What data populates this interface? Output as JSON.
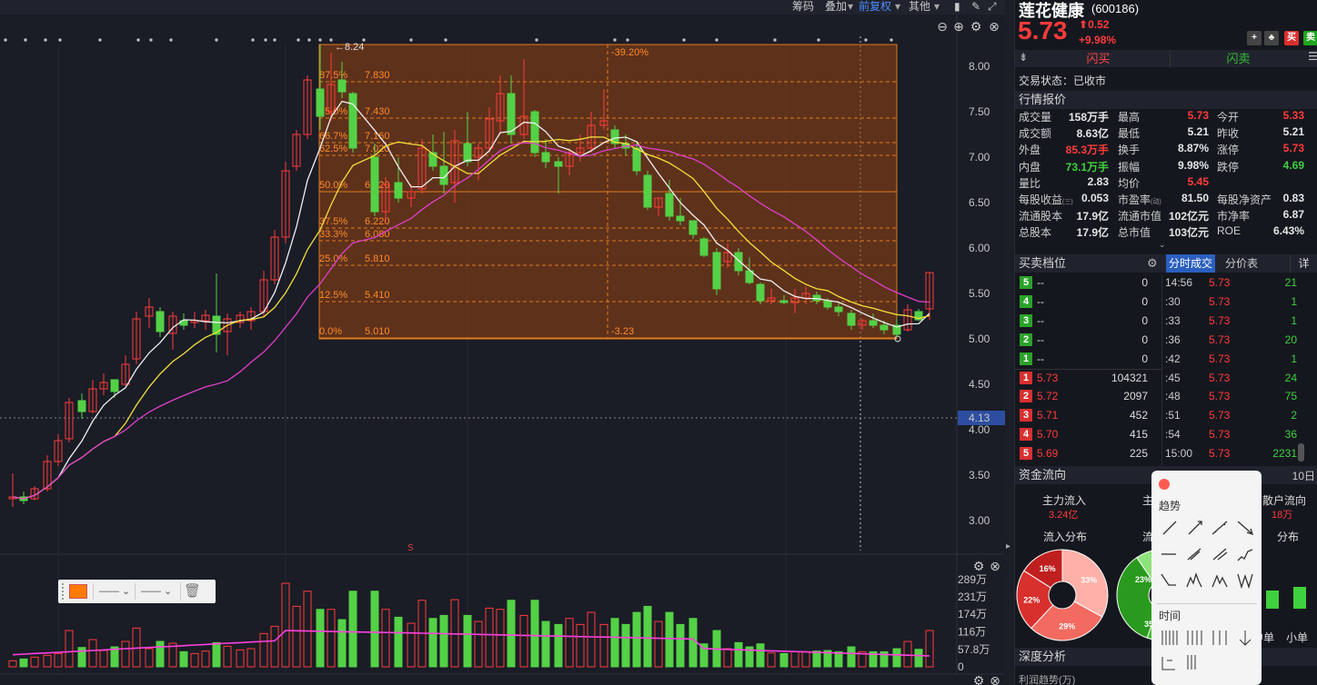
{
  "toolbar": {
    "chips": "筹码",
    "overlay": "叠加",
    "adjust": "前复权",
    "other": "其他"
  },
  "price_axis": [
    "8.00",
    "7.50",
    "7.00",
    "6.50",
    "6.00",
    "5.50",
    "5.00",
    "4.50",
    "4.00",
    "3.50",
    "3.00"
  ],
  "crosshair_price": "4.13",
  "fib": {
    "levels": [
      {
        "pct": "87.5%",
        "price": "7.830"
      },
      {
        "pct": "75.0%",
        "price": "7.430"
      },
      {
        "pct": "66.7%",
        "price": "7.160"
      },
      {
        "pct": "62.5%",
        "price": "7.020"
      },
      {
        "pct": "50.0%",
        "price": "6.620"
      },
      {
        "pct": "37.5%",
        "price": "6.220"
      },
      {
        "pct": "33.3%",
        "price": "6.080"
      },
      {
        "pct": "25.0%",
        "price": "5.810"
      },
      {
        "pct": "12.5%",
        "price": "5.410"
      },
      {
        "pct": "0.0%",
        "price": "5.010"
      }
    ],
    "high_label": "8.24",
    "change_label": "-39.20%",
    "diff_label": "-3.23"
  },
  "signal_mark": "S",
  "volume_axis": [
    "289万",
    "231万",
    "174万",
    "116万",
    "57.8万",
    "0"
  ],
  "stock": {
    "name": "莲花健康",
    "code": "(600186)",
    "price": "5.73",
    "change": "0.52",
    "change_pct": "+9.98%"
  },
  "trade_buttons": {
    "buy": "闪买",
    "sell": "闪卖",
    "buy_small": "买",
    "sell_small": "卖"
  },
  "trade_status": "交易状态：已收市",
  "quote_title": "行情报价",
  "quote": [
    [
      {
        "k": "成交量",
        "v": "158万手"
      },
      {
        "k": "最高",
        "v": "5.73",
        "c": "red"
      },
      {
        "k": "今开",
        "v": "5.33",
        "c": "red"
      }
    ],
    [
      {
        "k": "成交额",
        "v": "8.63亿"
      },
      {
        "k": "最低",
        "v": "5.21"
      },
      {
        "k": "昨收",
        "v": "5.21"
      }
    ],
    [
      {
        "k": "外盘",
        "v": "85.3万手",
        "c": "red"
      },
      {
        "k": "换手",
        "v": "8.87%"
      },
      {
        "k": "涨停",
        "v": "5.73",
        "c": "red"
      }
    ],
    [
      {
        "k": "内盘",
        "v": "73.1万手",
        "c": "green"
      },
      {
        "k": "振幅",
        "v": "9.98%"
      },
      {
        "k": "跌停",
        "v": "4.69",
        "c": "green"
      }
    ],
    [
      {
        "k": "量比",
        "v": "2.83"
      },
      {
        "k": "均价",
        "v": "5.45",
        "c": "red"
      },
      {
        "k": "",
        "v": ""
      }
    ],
    [
      {
        "k": "每股收益",
        "v": "0.053",
        "sup": "(三)"
      },
      {
        "k": "市盈率",
        "v": "81.50",
        "sup": "(动)"
      },
      {
        "k": "每股净资产",
        "v": "0.83"
      }
    ],
    [
      {
        "k": "流通股本",
        "v": "17.9亿"
      },
      {
        "k": "流通市值",
        "v": "102亿元"
      },
      {
        "k": "市净率",
        "v": "6.87"
      }
    ],
    [
      {
        "k": "总股本",
        "v": "17.9亿"
      },
      {
        "k": "总市值",
        "v": "103亿元"
      },
      {
        "k": "ROE",
        "v": "6.43%"
      }
    ]
  ],
  "orderbook_title": "买卖档位",
  "asks": [
    {
      "n": "5",
      "p": "--",
      "v": "0"
    },
    {
      "n": "4",
      "p": "--",
      "v": "0"
    },
    {
      "n": "3",
      "p": "--",
      "v": "0"
    },
    {
      "n": "2",
      "p": "--",
      "v": "0"
    },
    {
      "n": "1",
      "p": "--",
      "v": "0"
    }
  ],
  "bids": [
    {
      "n": "1",
      "p": "5.73",
      "v": "104321"
    },
    {
      "n": "2",
      "p": "5.72",
      "v": "2097"
    },
    {
      "n": "3",
      "p": "5.71",
      "v": "452"
    },
    {
      "n": "4",
      "p": "5.70",
      "v": "415"
    },
    {
      "n": "5",
      "p": "5.69",
      "v": "225"
    }
  ],
  "ticks_tabs": {
    "t1": "分时成交",
    "t2": "分价表",
    "detail": "详"
  },
  "ticks": [
    {
      "t": "14:56",
      "p": "5.73",
      "v": "21"
    },
    {
      "t": ":30",
      "p": "5.73",
      "v": "1"
    },
    {
      "t": ":33",
      "p": "5.73",
      "v": "1"
    },
    {
      "t": ":36",
      "p": "5.73",
      "v": "20"
    },
    {
      "t": ":42",
      "p": "5.73",
      "v": "1"
    },
    {
      "t": ":45",
      "p": "5.73",
      "v": "24"
    },
    {
      "t": ":48",
      "p": "5.73",
      "v": "75"
    },
    {
      "t": ":51",
      "p": "5.73",
      "v": "2"
    },
    {
      "t": ":54",
      "p": "5.73",
      "v": "36"
    },
    {
      "t": "15:00",
      "p": "5.73",
      "v": "2231"
    }
  ],
  "flow": {
    "title": "资金流向",
    "tab_10": "10日",
    "main_in": "主力流入",
    "main_in_val": "3.24亿",
    "main_out": "主",
    "retail": "散户流向",
    "retail_val": "18万",
    "in_dist": "流入分布",
    "out_dist": "流",
    "out_dist2": "分布",
    "pie": [
      "33%",
      "29%",
      "22%",
      "16%"
    ],
    "pie2": [
      "23%",
      "35"
    ],
    "mid": "中单",
    "small": "小单"
  },
  "depth": {
    "title": "深度分析",
    "sub": "利润趋势(万)"
  },
  "popup": {
    "trend": "趋势",
    "time": "时间"
  }
}
